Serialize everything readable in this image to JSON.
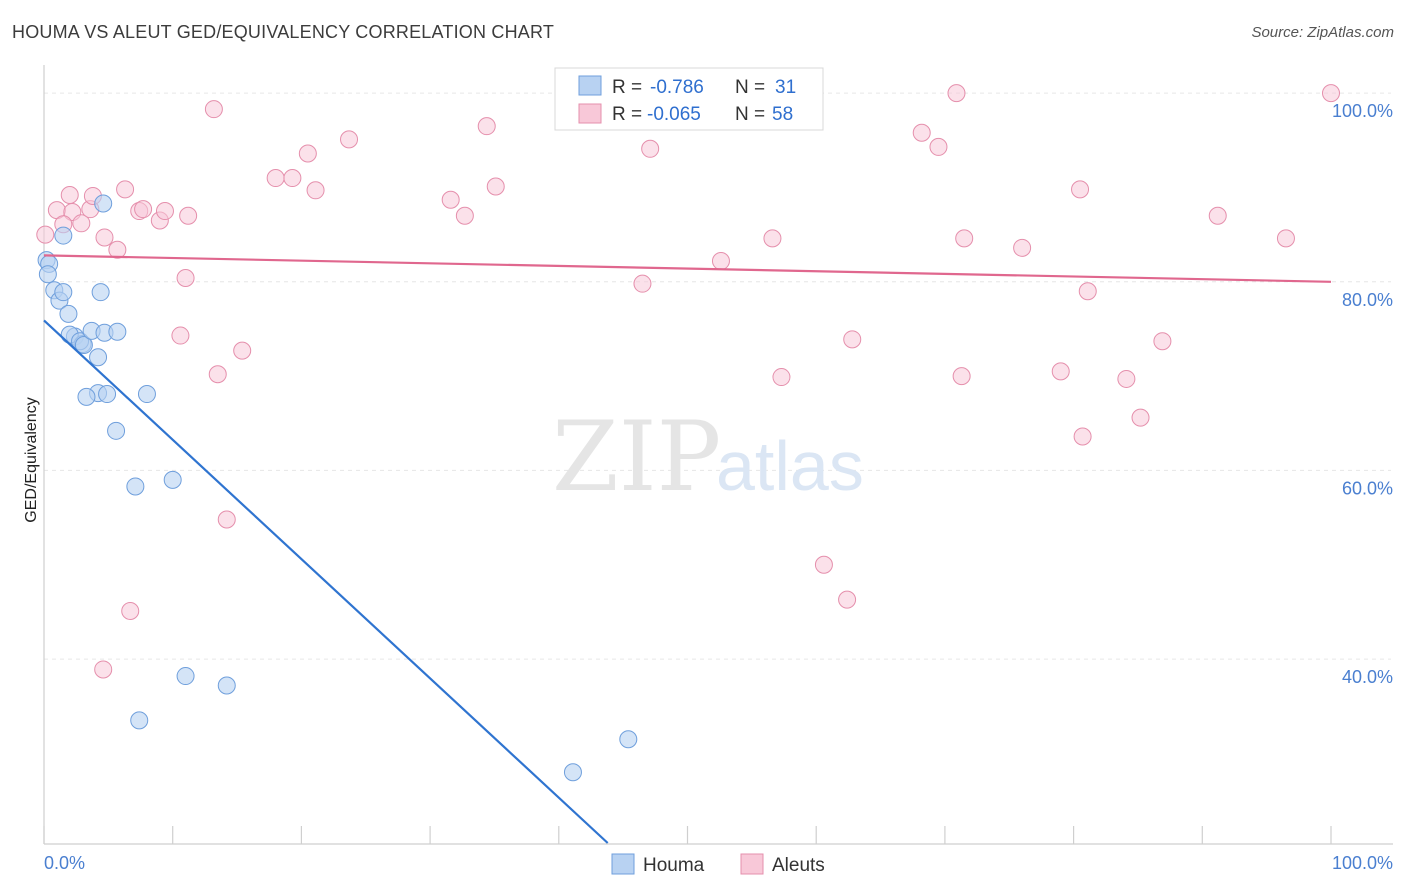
{
  "title": "HOUMA VS ALEUT GED/EQUIVALENCY CORRELATION CHART",
  "source": "Source: ZipAtlas.com",
  "watermark": {
    "zip": "ZIP",
    "atlas": "atlas"
  },
  "colors": {
    "houma_fill": "#b8d2f2",
    "houma_stroke": "#6f9fdc",
    "houma_line": "#2f74d0",
    "aleut_fill": "#f8c8d8",
    "aleut_stroke": "#e58fac",
    "aleut_line": "#e0678e",
    "tick_text": "#4a7fd0",
    "grid": "#e6e6e6"
  },
  "legend_top": {
    "rows": [
      {
        "r_label": "R = ",
        "r_value": "-0.786",
        "n_label": "N = ",
        "n_value": "31"
      },
      {
        "r_label": "R = ",
        "r_value": "-0.065",
        "n_label": "N = ",
        "n_value": "58"
      }
    ]
  },
  "legend_bottom": [
    "Houma",
    "Aleuts"
  ],
  "chart_data": {
    "type": "scatter",
    "title": "HOUMA VS ALEUT GED/EQUIVALENCY CORRELATION CHART",
    "xlabel": "",
    "ylabel": "GED/Equivalency",
    "xlim": [
      0,
      100
    ],
    "ylim": [
      20.5,
      101.5
    ],
    "x_tick_labels": [
      "0.0%",
      "100.0%"
    ],
    "y_ticks": [
      40,
      60,
      80,
      100
    ],
    "y_tick_labels": [
      "40.0%",
      "60.0%",
      "80.0%",
      "100.0%"
    ],
    "grid": true,
    "legend_placement": "bottom-center",
    "series": [
      {
        "name": "Houma",
        "r": -0.786,
        "n": 31,
        "trend": {
          "x": [
            0,
            43.8
          ],
          "y": [
            75.9,
            20.5
          ]
        },
        "points": [
          [
            0.2,
            82.3
          ],
          [
            0.4,
            81.9
          ],
          [
            0.3,
            80.8
          ],
          [
            0.8,
            79.1
          ],
          [
            1.2,
            78.0
          ],
          [
            1.5,
            78.9
          ],
          [
            1.9,
            76.6
          ],
          [
            2.4,
            74.2
          ],
          [
            2.0,
            74.4
          ],
          [
            3.0,
            73.4
          ],
          [
            2.8,
            73.7
          ],
          [
            3.1,
            73.3
          ],
          [
            3.7,
            74.8
          ],
          [
            4.2,
            72.0
          ],
          [
            4.4,
            78.9
          ],
          [
            4.2,
            68.2
          ],
          [
            3.3,
            67.8
          ],
          [
            4.7,
            74.6
          ],
          [
            5.7,
            74.7
          ],
          [
            4.9,
            68.1
          ],
          [
            8.0,
            68.1
          ],
          [
            5.6,
            64.2
          ],
          [
            7.1,
            58.3
          ],
          [
            10.0,
            59.0
          ],
          [
            4.6,
            88.3
          ],
          [
            1.5,
            84.9
          ],
          [
            11.0,
            38.2
          ],
          [
            7.4,
            33.5
          ],
          [
            14.2,
            37.2
          ],
          [
            41.1,
            28.0
          ],
          [
            45.4,
            31.5
          ]
        ]
      },
      {
        "name": "Aleuts",
        "r": -0.065,
        "n": 58,
        "trend": {
          "x": [
            0,
            100
          ],
          "y": [
            82.8,
            80.0
          ]
        },
        "points": [
          [
            0.1,
            85.0
          ],
          [
            1.0,
            87.6
          ],
          [
            2.0,
            89.2
          ],
          [
            2.2,
            87.4
          ],
          [
            1.5,
            86.1
          ],
          [
            2.9,
            86.2
          ],
          [
            3.6,
            87.7
          ],
          [
            3.8,
            89.1
          ],
          [
            6.3,
            89.8
          ],
          [
            7.4,
            87.5
          ],
          [
            7.7,
            87.7
          ],
          [
            9.0,
            86.5
          ],
          [
            9.4,
            87.5
          ],
          [
            11.0,
            80.4
          ],
          [
            11.2,
            87.0
          ],
          [
            4.7,
            84.7
          ],
          [
            5.7,
            83.4
          ],
          [
            13.2,
            98.3
          ],
          [
            18.0,
            91.0
          ],
          [
            19.3,
            91.0
          ],
          [
            20.5,
            93.6
          ],
          [
            21.1,
            89.7
          ],
          [
            23.7,
            95.1
          ],
          [
            31.6,
            88.7
          ],
          [
            32.7,
            87.0
          ],
          [
            34.4,
            96.5
          ],
          [
            35.1,
            90.1
          ],
          [
            10.6,
            74.3
          ],
          [
            13.5,
            70.2
          ],
          [
            15.4,
            72.7
          ],
          [
            14.2,
            54.8
          ],
          [
            6.7,
            45.1
          ],
          [
            4.6,
            38.9
          ],
          [
            46.5,
            79.8
          ],
          [
            47.1,
            94.1
          ],
          [
            52.6,
            82.2
          ],
          [
            55.3,
            100.0
          ],
          [
            56.6,
            84.6
          ],
          [
            57.3,
            69.9
          ],
          [
            62.8,
            73.9
          ],
          [
            60.6,
            50.0
          ],
          [
            62.4,
            46.3
          ],
          [
            68.2,
            95.8
          ],
          [
            69.5,
            94.3
          ],
          [
            70.9,
            100.0
          ],
          [
            71.5,
            84.6
          ],
          [
            71.3,
            70.0
          ],
          [
            76.0,
            83.6
          ],
          [
            79.0,
            70.5
          ],
          [
            80.5,
            89.8
          ],
          [
            81.1,
            79.0
          ],
          [
            80.7,
            63.6
          ],
          [
            84.1,
            69.7
          ],
          [
            85.2,
            65.6
          ],
          [
            86.9,
            73.7
          ],
          [
            91.2,
            87.0
          ],
          [
            96.5,
            84.6
          ],
          [
            100.0,
            100.0
          ]
        ]
      }
    ]
  }
}
